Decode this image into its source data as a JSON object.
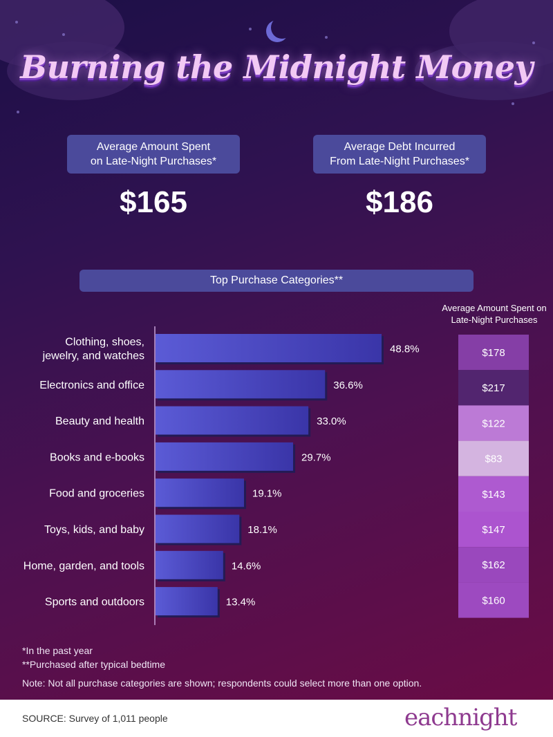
{
  "title": "Burning the Midnight Money",
  "stats": [
    {
      "label_line1": "Average Amount Spent",
      "label_line2": "on Late-Night Purchases*",
      "value": "$165"
    },
    {
      "label_line1": "Average Debt Incurred",
      "label_line2": "From Late-Night Purchases*",
      "value": "$186"
    }
  ],
  "chart_data": {
    "type": "bar",
    "title": "Top Purchase Categories**",
    "orientation": "horizontal",
    "categories": [
      "Clothing, shoes, jewelry, and watches",
      "Electronics and office",
      "Beauty and health",
      "Books and e-books",
      "Food and groceries",
      "Toys, kids, and baby",
      "Home, garden, and tools",
      "Sports and outdoors"
    ],
    "category_lines": [
      [
        "Clothing, shoes,",
        "jewelry, and watches"
      ],
      [
        "Electronics and office"
      ],
      [
        "Beauty and health"
      ],
      [
        "Books and e-books"
      ],
      [
        "Food and groceries"
      ],
      [
        "Toys, kids, and baby"
      ],
      [
        "Home, garden, and tools"
      ],
      [
        "Sports and outdoors"
      ]
    ],
    "values": [
      48.8,
      36.6,
      33.0,
      29.7,
      19.1,
      18.1,
      14.6,
      13.4
    ],
    "value_labels": [
      "48.8%",
      "36.6%",
      "33.0%",
      "29.7%",
      "19.1%",
      "18.1%",
      "14.6%",
      "13.4%"
    ],
    "xlim": [
      0,
      60
    ],
    "grid": false,
    "side_column": {
      "header_line1": "Average Amount Spent on",
      "header_line2": "Late-Night Purchases",
      "values": [
        178,
        217,
        122,
        83,
        143,
        147,
        162,
        160
      ],
      "labels": [
        "$178",
        "$217",
        "$122",
        "$83",
        "$143",
        "$147",
        "$162",
        "$160"
      ]
    },
    "colors": {
      "bar_left": "#5b5bd6",
      "bar_right": "#3a35a8",
      "bar_shadow": "#231b55",
      "axis": "#c8a2d8"
    }
  },
  "footnotes": {
    "note1": "*In the past year",
    "note2": "**Purchased after typical bedtime",
    "note3": "Note: Not all purchase categories are shown; respondents could select more than one option."
  },
  "source": "SOURCE: Survey of 1,011 people",
  "logo_text": "eachnight",
  "colors": {
    "stat_box": "#4b4a9b",
    "logo": "#8e3a8f"
  }
}
